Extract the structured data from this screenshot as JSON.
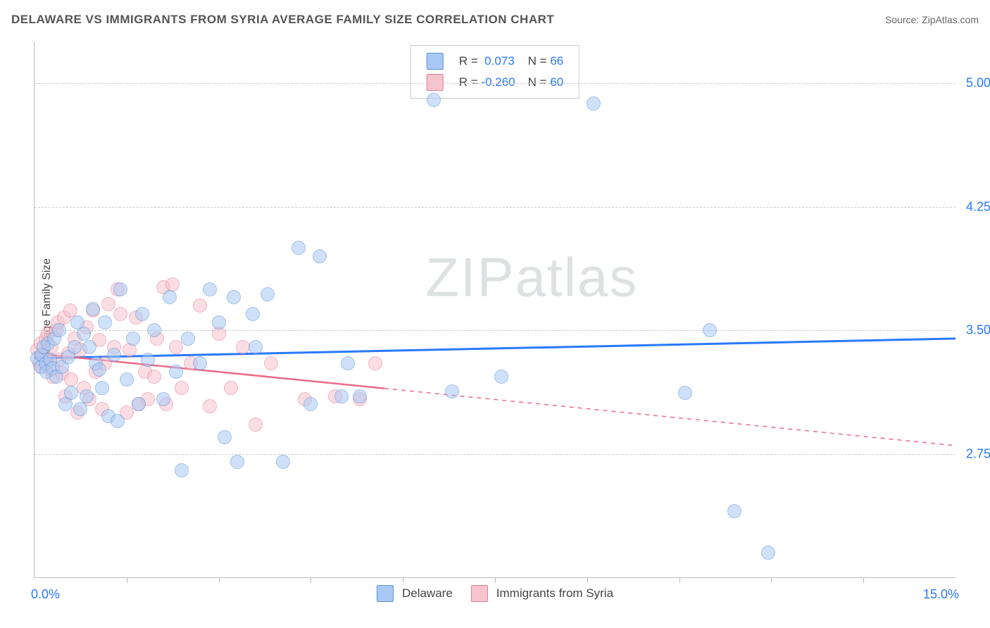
{
  "title": "DELAWARE VS IMMIGRANTS FROM SYRIA AVERAGE FAMILY SIZE CORRELATION CHART",
  "source_label": "Source: ZipAtlas.com",
  "watermark_strong": "ZIP",
  "watermark_light": "atlas",
  "yaxis_label": "Average Family Size",
  "xaxis_left_label": "0.0%",
  "xaxis_right_label": "15.0%",
  "legend_bottom": {
    "series1": "Delaware",
    "series2": "Immigrants from Syria"
  },
  "legend_top": {
    "r_label": "R =",
    "n_label": "N =",
    "r1": "0.073",
    "n1": "66",
    "r2": "-0.260",
    "n2": "60"
  },
  "chart": {
    "type": "scatter",
    "x_range": [
      0,
      15
    ],
    "y_range": [
      2.0,
      5.25
    ],
    "y_ticks": [
      2.75,
      3.5,
      4.25,
      5.0
    ],
    "y_tick_labels": [
      "2.75",
      "3.50",
      "4.25",
      "5.00"
    ],
    "x_ticks": [
      1.5,
      3.0,
      4.5,
      6.0,
      7.5,
      9.0,
      10.5,
      12.0,
      13.5
    ],
    "colors": {
      "blue_fill": "#a9c9f5",
      "blue_stroke": "#5a91d6",
      "pink_fill": "#f7c4ce",
      "pink_stroke": "#e67a94",
      "blue_line": "#2979ff",
      "pink_line": "#ea6b88",
      "grid": "#cccccc",
      "axis": "#bbbbbb",
      "tick_text": "#2979ff",
      "bg": "#ffffff"
    },
    "blue_trend": {
      "y_at_x0": 3.33,
      "y_at_x15": 3.45
    },
    "pink_trend": {
      "y_at_x0": 3.36,
      "y_at_x15": 2.8,
      "solid_until_x": 5.7
    },
    "series_blue": [
      [
        0.05,
        3.33
      ],
      [
        0.1,
        3.28
      ],
      [
        0.12,
        3.35
      ],
      [
        0.15,
        3.4
      ],
      [
        0.18,
        3.3
      ],
      [
        0.2,
        3.25
      ],
      [
        0.22,
        3.42
      ],
      [
        0.25,
        3.32
      ],
      [
        0.3,
        3.27
      ],
      [
        0.32,
        3.45
      ],
      [
        0.35,
        3.22
      ],
      [
        0.4,
        3.5
      ],
      [
        0.45,
        3.28
      ],
      [
        0.5,
        3.05
      ],
      [
        0.55,
        3.34
      ],
      [
        0.6,
        3.12
      ],
      [
        0.65,
        3.4
      ],
      [
        0.7,
        3.55
      ],
      [
        0.75,
        3.02
      ],
      [
        0.8,
        3.48
      ],
      [
        0.85,
        3.1
      ],
      [
        0.9,
        3.4
      ],
      [
        0.95,
        3.63
      ],
      [
        1.0,
        3.3
      ],
      [
        1.05,
        3.26
      ],
      [
        1.1,
        3.15
      ],
      [
        1.15,
        3.55
      ],
      [
        1.2,
        2.98
      ],
      [
        1.3,
        3.35
      ],
      [
        1.35,
        2.95
      ],
      [
        1.4,
        3.75
      ],
      [
        1.5,
        3.2
      ],
      [
        1.6,
        3.45
      ],
      [
        1.7,
        3.05
      ],
      [
        1.75,
        3.6
      ],
      [
        1.85,
        3.32
      ],
      [
        1.95,
        3.5
      ],
      [
        2.1,
        3.08
      ],
      [
        2.2,
        3.7
      ],
      [
        2.3,
        3.25
      ],
      [
        2.4,
        2.65
      ],
      [
        2.5,
        3.45
      ],
      [
        2.7,
        3.3
      ],
      [
        2.85,
        3.75
      ],
      [
        3.0,
        3.55
      ],
      [
        3.1,
        2.85
      ],
      [
        3.25,
        3.7
      ],
      [
        3.3,
        2.7
      ],
      [
        3.55,
        3.6
      ],
      [
        3.6,
        3.4
      ],
      [
        3.8,
        3.72
      ],
      [
        4.05,
        2.7
      ],
      [
        4.3,
        4.0
      ],
      [
        4.5,
        3.05
      ],
      [
        4.65,
        3.95
      ],
      [
        5.0,
        3.1
      ],
      [
        5.1,
        3.3
      ],
      [
        5.3,
        3.1
      ],
      [
        6.5,
        4.9
      ],
      [
        6.8,
        3.13
      ],
      [
        7.6,
        3.22
      ],
      [
        9.1,
        4.88
      ],
      [
        10.6,
        3.12
      ],
      [
        11.0,
        3.5
      ],
      [
        11.4,
        2.4
      ],
      [
        11.95,
        2.15
      ]
    ],
    "series_pink": [
      [
        0.05,
        3.38
      ],
      [
        0.08,
        3.3
      ],
      [
        0.1,
        3.42
      ],
      [
        0.12,
        3.28
      ],
      [
        0.15,
        3.35
      ],
      [
        0.18,
        3.45
      ],
      [
        0.2,
        3.32
      ],
      [
        0.22,
        3.48
      ],
      [
        0.25,
        3.26
      ],
      [
        0.28,
        3.4
      ],
      [
        0.3,
        3.22
      ],
      [
        0.35,
        3.5
      ],
      [
        0.38,
        3.55
      ],
      [
        0.4,
        3.32
      ],
      [
        0.45,
        3.24
      ],
      [
        0.48,
        3.58
      ],
      [
        0.5,
        3.1
      ],
      [
        0.55,
        3.36
      ],
      [
        0.58,
        3.62
      ],
      [
        0.6,
        3.2
      ],
      [
        0.65,
        3.45
      ],
      [
        0.7,
        3.0
      ],
      [
        0.75,
        3.38
      ],
      [
        0.8,
        3.15
      ],
      [
        0.85,
        3.52
      ],
      [
        0.9,
        3.08
      ],
      [
        0.95,
        3.62
      ],
      [
        1.0,
        3.25
      ],
      [
        1.05,
        3.44
      ],
      [
        1.1,
        3.02
      ],
      [
        1.15,
        3.3
      ],
      [
        1.2,
        3.66
      ],
      [
        1.3,
        3.4
      ],
      [
        1.35,
        3.75
      ],
      [
        1.4,
        3.6
      ],
      [
        1.5,
        3.0
      ],
      [
        1.55,
        3.38
      ],
      [
        1.65,
        3.58
      ],
      [
        1.7,
        3.05
      ],
      [
        1.8,
        3.25
      ],
      [
        1.85,
        3.08
      ],
      [
        1.95,
        3.22
      ],
      [
        2.0,
        3.45
      ],
      [
        2.1,
        3.76
      ],
      [
        2.15,
        3.05
      ],
      [
        2.25,
        3.78
      ],
      [
        2.3,
        3.4
      ],
      [
        2.4,
        3.15
      ],
      [
        2.55,
        3.3
      ],
      [
        2.7,
        3.65
      ],
      [
        2.85,
        3.04
      ],
      [
        3.0,
        3.48
      ],
      [
        3.2,
        3.15
      ],
      [
        3.4,
        3.4
      ],
      [
        3.6,
        2.93
      ],
      [
        3.85,
        3.3
      ],
      [
        4.4,
        3.08
      ],
      [
        4.9,
        3.1
      ],
      [
        5.3,
        3.08
      ],
      [
        5.55,
        3.3
      ]
    ]
  }
}
